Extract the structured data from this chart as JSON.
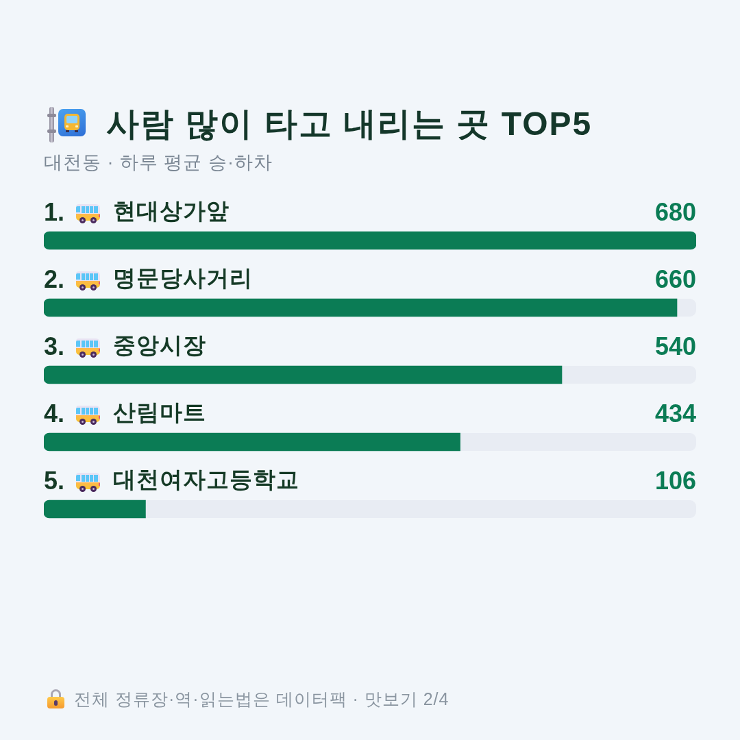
{
  "chart_data": {
    "type": "bar",
    "orientation": "horizontal",
    "title": "사람 많이 타고 내리는 곳 TOP5",
    "subtitle": "대천동 · 하루 평균 승·하차",
    "categories": [
      "현대상가앞",
      "명문당사거리",
      "중앙시장",
      "산림마트",
      "대천여자고등학교"
    ],
    "values": [
      680,
      660,
      540,
      434,
      106
    ],
    "color": "#0b7c55",
    "xlim": [
      0,
      680
    ],
    "data_labels": true,
    "tick_labels": "y",
    "annotations": [
      "1.",
      "2.",
      "3.",
      "4.",
      "5.",
      "전체 정류장·역·읽는법은 데이터팩 · 맛보기 2/4"
    ]
  }
}
